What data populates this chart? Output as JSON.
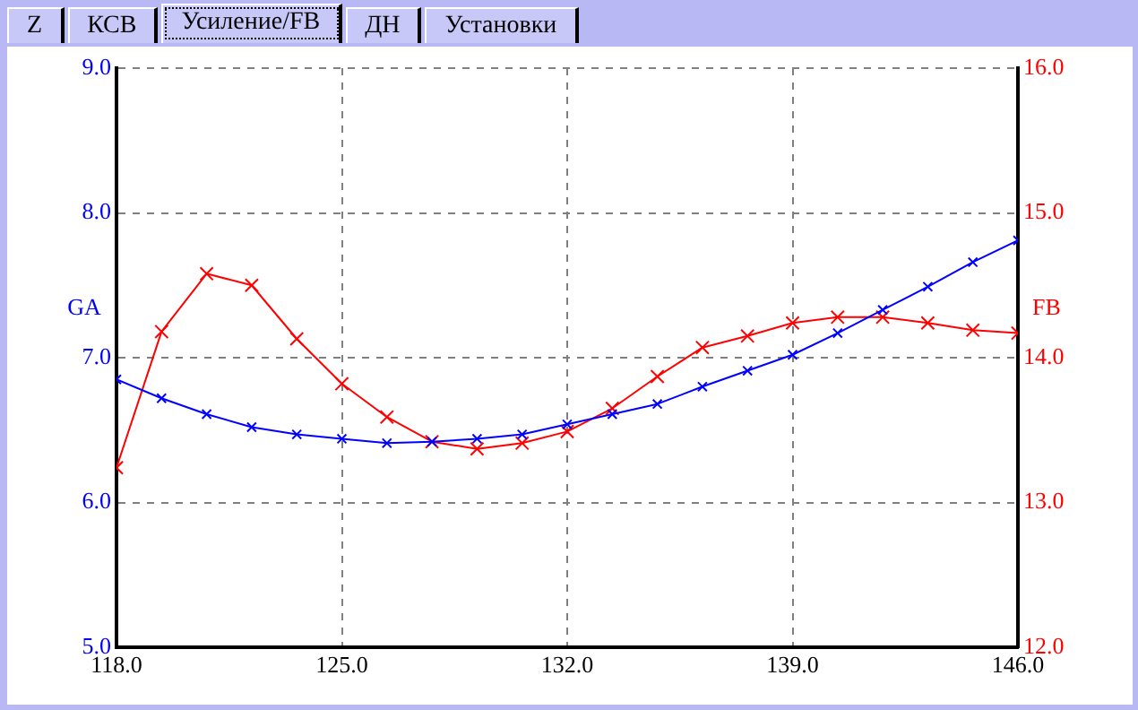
{
  "chart_data": {
    "type": "line",
    "annotations": [
      "Z",
      "КСВ",
      "Усиление/FB",
      "ДН",
      "Установки"
    ],
    "ylabel": "GA",
    "y2label": "FB",
    "x": [
      118,
      119.4,
      120.8,
      122.2,
      123.6,
      125,
      126.4,
      127.8,
      129.2,
      130.6,
      132,
      133.4,
      134.8,
      136.2,
      137.6,
      139,
      140.4,
      141.8,
      143.2,
      144.6,
      146
    ],
    "series": [
      {
        "color": "#0000ff",
        "axis": "y",
        "values": [
          6.85,
          6.72,
          6.61,
          6.52,
          6.47,
          6.44,
          6.41,
          6.42,
          6.44,
          6.47,
          6.54,
          6.61,
          6.68,
          6.8,
          6.91,
          7.02,
          7.17,
          7.33,
          7.49,
          7.66,
          7.81
        ]
      },
      {
        "color": "#ff0000",
        "axis": "y2",
        "values": [
          13.24,
          14.18,
          14.58,
          14.5,
          14.13,
          13.82,
          13.59,
          13.42,
          13.37,
          13.41,
          13.49,
          13.65,
          13.87,
          14.07,
          14.15,
          14.24,
          14.28,
          14.28,
          14.24,
          14.19,
          14.17
        ]
      }
    ],
    "xlim": [
      118,
      146
    ],
    "xticks": [
      {
        "value": 118,
        "label": "118.0"
      },
      {
        "value": 125,
        "label": "125.0"
      },
      {
        "value": 132,
        "label": "132.0"
      },
      {
        "value": 139,
        "label": "139.0"
      },
      {
        "value": 146,
        "label": "146.0"
      }
    ],
    "ylim": [
      5,
      9
    ],
    "yticks": [
      {
        "value": 5,
        "label": "5.0"
      },
      {
        "value": 6,
        "label": "6.0"
      },
      {
        "value": 7,
        "label": "7.0"
      },
      {
        "value": 8,
        "label": "8.0"
      },
      {
        "value": 9,
        "label": "9.0"
      }
    ],
    "y2lim": [
      12,
      16
    ],
    "y2ticks": [
      {
        "value": 12,
        "label": "12.0"
      },
      {
        "value": 13,
        "label": "13.0"
      },
      {
        "value": 14,
        "label": "14.0"
      },
      {
        "value": 15,
        "label": "15.0"
      },
      {
        "value": 16,
        "label": "16.0"
      }
    ],
    "grid": true,
    "marker": "cross",
    "line_style": "solid",
    "legend": false
  }
}
